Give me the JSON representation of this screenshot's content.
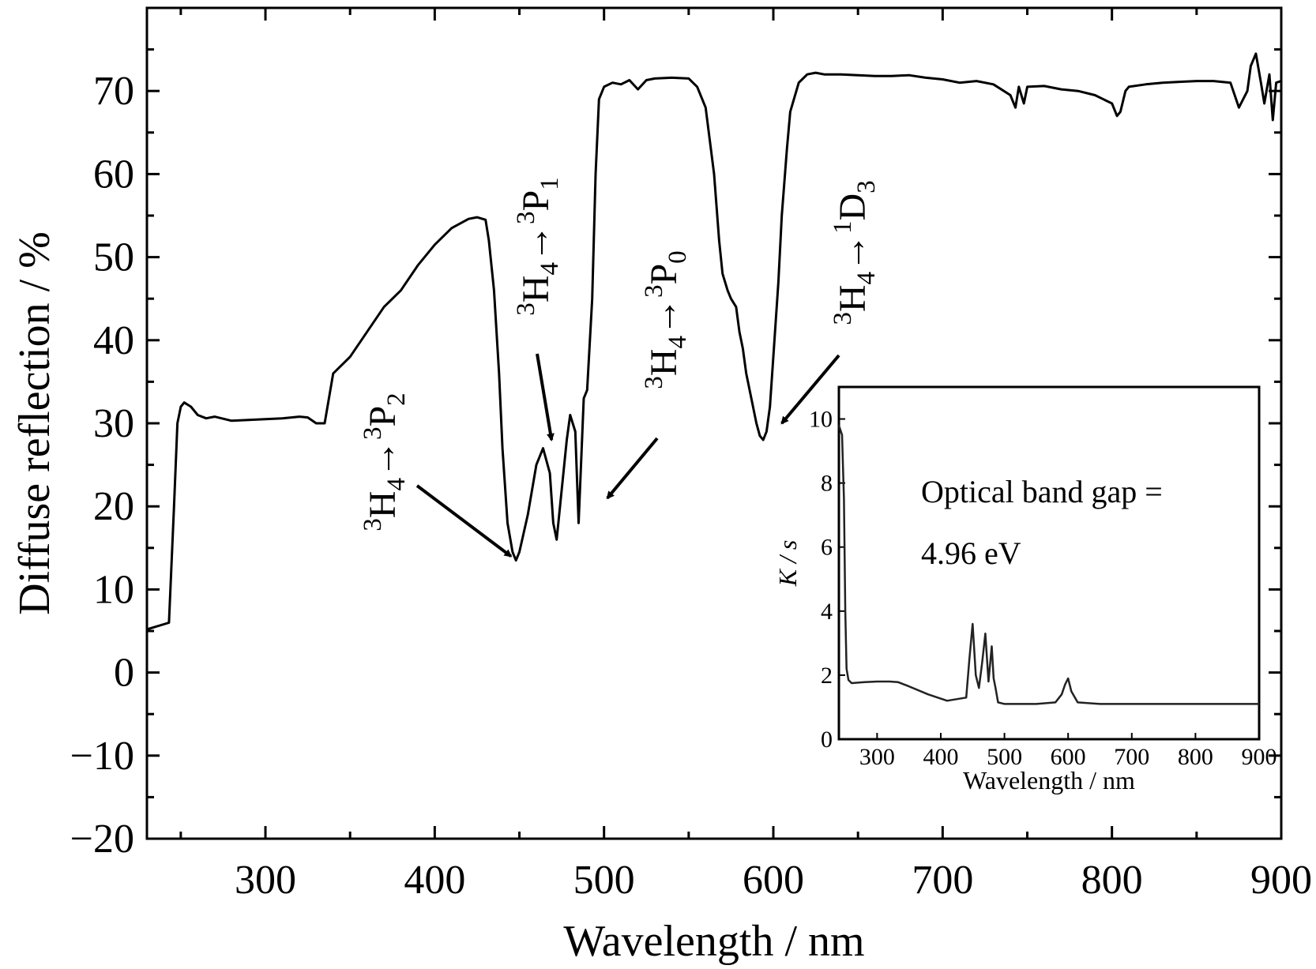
{
  "chart_data": [
    {
      "type": "line",
      "title": "",
      "xlabel": "Wavelength / nm",
      "ylabel": "Diffuse reflection / %",
      "xlim": [
        230,
        900
      ],
      "ylim": [
        -20,
        80
      ],
      "xticks": [
        300,
        400,
        500,
        600,
        700,
        800,
        900
      ],
      "xtick_labels": [
        "300",
        "400",
        "500",
        "600",
        "700",
        "800",
        "900"
      ],
      "yticks": [
        -20,
        -10,
        0,
        10,
        20,
        30,
        40,
        50,
        60,
        70
      ],
      "ytick_labels": [
        "−20",
        "−10",
        "0",
        "10",
        "20",
        "30",
        "40",
        "50",
        "60",
        "70"
      ],
      "grid": false,
      "legend": "none",
      "colors": {
        "line": "#000000",
        "axes": "#000000"
      },
      "series": [
        {
          "x": [
            230,
            243,
            246,
            248,
            250,
            252,
            256,
            260,
            265,
            270,
            280,
            290,
            300,
            310,
            320,
            325,
            330,
            335,
            340,
            350,
            360,
            370,
            380,
            390,
            400,
            410,
            420,
            425,
            430,
            432,
            435,
            438,
            440,
            443,
            446,
            448,
            450,
            455,
            460,
            464,
            468,
            470,
            472,
            475,
            478,
            480,
            483,
            485,
            488,
            490,
            493,
            495,
            497,
            500,
            505,
            510,
            515,
            520,
            525,
            530,
            540,
            550,
            555,
            560,
            565,
            568,
            570,
            573,
            575,
            578,
            580,
            582,
            584,
            586,
            588,
            590,
            592,
            594,
            596,
            598,
            600,
            603,
            605,
            608,
            610,
            615,
            620,
            625,
            630,
            640,
            650,
            660,
            670,
            680,
            690,
            700,
            710,
            720,
            730,
            740,
            743,
            745,
            748,
            750,
            760,
            770,
            780,
            790,
            800,
            803,
            805,
            808,
            810,
            820,
            830,
            840,
            850,
            860,
            870,
            875,
            880,
            882,
            885,
            888,
            890,
            893,
            895,
            897,
            900
          ],
          "y": [
            5.2,
            6.0,
            20.0,
            30.0,
            32.0,
            32.5,
            32.0,
            31.0,
            30.6,
            30.8,
            30.3,
            30.4,
            30.5,
            30.6,
            30.8,
            30.7,
            30.0,
            30.0,
            36.0,
            38.0,
            41.0,
            44.0,
            46.0,
            49.0,
            51.5,
            53.5,
            54.6,
            54.8,
            54.5,
            52.0,
            46.0,
            36.0,
            27.0,
            18.0,
            14.5,
            13.5,
            14.5,
            19.0,
            25.0,
            27.0,
            24.0,
            18.0,
            16.0,
            22.0,
            28.0,
            31.0,
            29.0,
            18.0,
            33.0,
            34.0,
            45.0,
            60.0,
            69.0,
            70.5,
            71.0,
            70.8,
            71.3,
            70.2,
            71.3,
            71.5,
            71.6,
            71.5,
            70.5,
            68.0,
            60.0,
            52.0,
            48.0,
            46.0,
            45.0,
            44.0,
            41.0,
            39.0,
            36.0,
            34.0,
            32.0,
            30.0,
            28.5,
            28.0,
            29.0,
            32.0,
            38.0,
            47.0,
            55.0,
            63.0,
            67.5,
            71.0,
            72.0,
            72.2,
            72.0,
            72.0,
            71.9,
            71.8,
            71.8,
            71.9,
            71.6,
            71.4,
            71.0,
            71.2,
            70.8,
            69.5,
            68.0,
            70.5,
            68.5,
            70.5,
            70.6,
            70.2,
            70.0,
            69.5,
            68.5,
            67.0,
            67.5,
            70.0,
            70.5,
            70.8,
            71.0,
            71.1,
            71.2,
            71.2,
            71.0,
            68.0,
            70.0,
            73.0,
            74.5,
            71.0,
            68.5,
            72.0,
            66.5,
            71.0,
            71.2
          ]
        }
      ],
      "annotations": [
        {
          "base": "H",
          "base_sub": "4",
          "base_sup": "3",
          "arrow": "→",
          "target": "P",
          "target_sub": "2",
          "target_sup": "3",
          "points_to": [
            445,
            14
          ]
        },
        {
          "base": "H",
          "base_sub": "4",
          "base_sup": "3",
          "arrow": "→",
          "target": "P",
          "target_sub": "1",
          "target_sup": "3",
          "points_to": [
            469,
            28
          ]
        },
        {
          "base": "H",
          "base_sub": "4",
          "base_sup": "3",
          "arrow": "→",
          "target": "P",
          "target_sub": "0",
          "target_sup": "3",
          "points_to": [
            502,
            21
          ]
        },
        {
          "base": "H",
          "base_sub": "4",
          "base_sup": "3",
          "arrow": "→",
          "target": "D",
          "target_sub": "3",
          "target_sup": "1",
          "points_to": [
            605,
            30
          ]
        }
      ]
    },
    {
      "type": "line",
      "title": "",
      "xlabel": "Wavelength / nm",
      "ylabel": "K / s",
      "xlim": [
        240,
        900
      ],
      "ylim": [
        0,
        11
      ],
      "xticks": [
        300,
        400,
        500,
        600,
        700,
        800,
        900
      ],
      "xtick_labels": [
        "300",
        "400",
        "500",
        "600",
        "700",
        "800",
        "900"
      ],
      "yticks": [
        0,
        2,
        4,
        6,
        8,
        10
      ],
      "ytick_labels": [
        "0",
        "2",
        "4",
        "6",
        "8",
        "10"
      ],
      "grid": false,
      "legend": "none",
      "colors": {
        "line": "#222222",
        "axes": "#000000"
      },
      "text": [
        "Optical band gap =",
        "4.96 eV"
      ],
      "series": [
        {
          "x": [
            240,
            245,
            248,
            250,
            252,
            255,
            260,
            280,
            300,
            320,
            333,
            350,
            380,
            410,
            440,
            445,
            450,
            455,
            460,
            465,
            470,
            475,
            480,
            483,
            486,
            490,
            500,
            550,
            580,
            590,
            595,
            600,
            605,
            615,
            650,
            700,
            800,
            900
          ],
          "y": [
            9.8,
            9.5,
            7.5,
            4.0,
            2.2,
            1.85,
            1.75,
            1.78,
            1.8,
            1.8,
            1.78,
            1.65,
            1.4,
            1.2,
            1.3,
            2.5,
            3.6,
            2.0,
            1.6,
            2.4,
            3.3,
            1.8,
            2.9,
            1.9,
            1.6,
            1.15,
            1.1,
            1.1,
            1.15,
            1.4,
            1.7,
            1.9,
            1.5,
            1.15,
            1.1,
            1.1,
            1.1,
            1.1
          ]
        }
      ]
    }
  ]
}
